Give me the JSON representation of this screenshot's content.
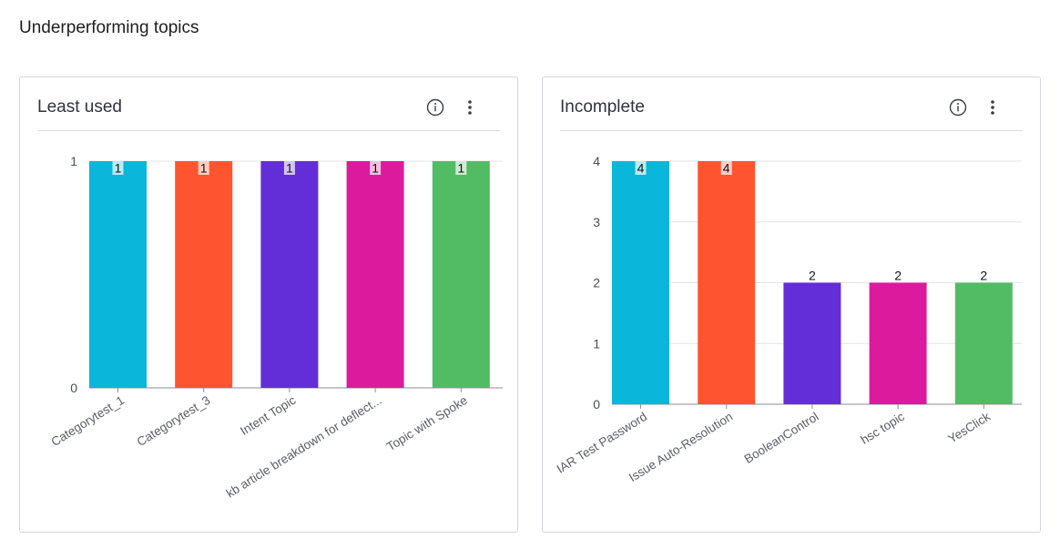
{
  "page": {
    "title": "Underperforming topics"
  },
  "cards": [
    {
      "title": "Least used",
      "info_icon": "info-icon",
      "menu_icon": "more-vertical-icon"
    },
    {
      "title": "Incomplete",
      "info_icon": "info-icon",
      "menu_icon": "more-vertical-icon"
    }
  ],
  "colors": [
    "#0ab6d9",
    "#fe5530",
    "#632dd8",
    "#dc1a9e",
    "#52bc65"
  ],
  "chart_data": [
    {
      "type": "bar",
      "title": "Least used",
      "categories": [
        "Categorytest_1",
        "Categorytest_3",
        "Intent Topic",
        "kb article breakdown for deflect...",
        "Topic with Spoke"
      ],
      "values": [
        1,
        1,
        1,
        1,
        1
      ],
      "ylim": [
        0,
        1
      ],
      "yticks": [
        0,
        1
      ],
      "grid": true,
      "legend": "none",
      "data_labels": true
    },
    {
      "type": "bar",
      "title": "Incomplete",
      "categories": [
        "IAR Test Password",
        "Issue Auto-Resolution",
        "BooleanControl",
        "hsc topic",
        "YesClick"
      ],
      "values": [
        4,
        4,
        2,
        2,
        2
      ],
      "ylim": [
        0,
        4
      ],
      "yticks": [
        0,
        1,
        2,
        3,
        4
      ],
      "grid": true,
      "legend": "none",
      "data_labels": true
    }
  ]
}
